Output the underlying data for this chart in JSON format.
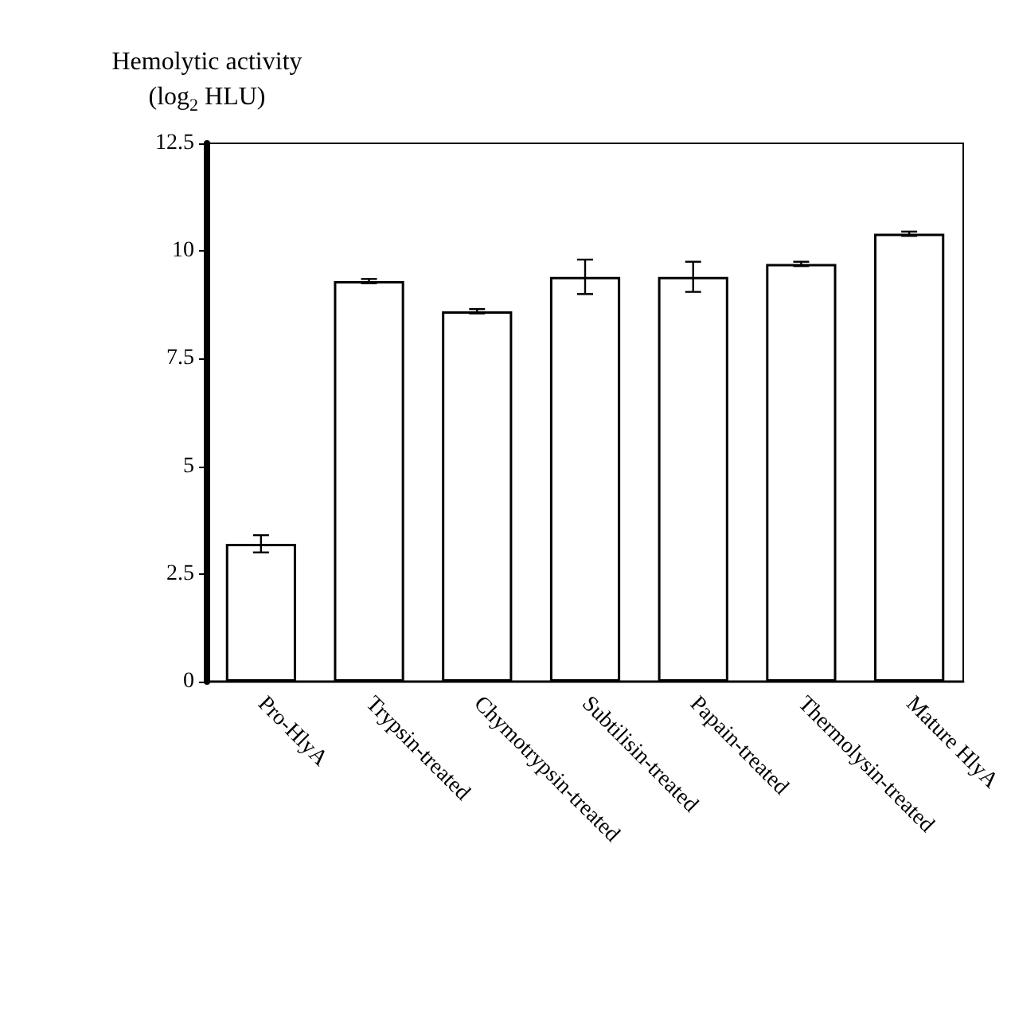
{
  "chart_data": {
    "type": "bar",
    "ylabel": "Hemolytic activity\n(log$_{2}$ HLU)",
    "categories": [
      "Pro-HlyA",
      "Trypsin-treated",
      "Chymotrypsin-treated",
      "Subtilisin-treated",
      "Papain-treated",
      "Thermolysin-treated",
      "Mature HlyA"
    ],
    "values": [
      3.2,
      9.3,
      8.6,
      9.4,
      9.4,
      9.7,
      10.4
    ],
    "errors": [
      0.2,
      0.05,
      0.05,
      0.4,
      0.35,
      0.05,
      0.05
    ],
    "color": "#ffffff",
    "ylim": [
      0,
      12.5
    ],
    "yticks": [
      0,
      2.5,
      5,
      7.5,
      10,
      12.5
    ],
    "grid": false
  }
}
